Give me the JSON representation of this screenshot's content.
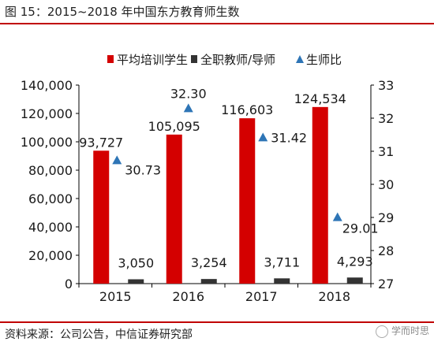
{
  "header": {
    "title": "图 15：2015~2018 年中国东方教育师生数"
  },
  "footer": {
    "source": "资料来源：公司公告，中信证券研究部",
    "watermark": "学而时思"
  },
  "colors": {
    "bar_primary": "#d40000",
    "bar_secondary": "#333333",
    "marker": "#2e75b6",
    "accent_rule": "#c00000"
  },
  "chart_data": {
    "type": "bar",
    "categories": [
      "2015",
      "2016",
      "2017",
      "2018"
    ],
    "series": [
      {
        "name": "平均培训学生",
        "kind": "bar",
        "axis": "left",
        "values": [
          93727,
          105095,
          116603,
          124534
        ],
        "labels": [
          "93,727",
          "105,095",
          "116,603",
          "124,534"
        ]
      },
      {
        "name": "全职教师/导师",
        "kind": "bar",
        "axis": "left",
        "values": [
          3050,
          3254,
          3711,
          4293
        ],
        "labels": [
          "3,050",
          "3,254",
          "3,711",
          "4,293"
        ]
      },
      {
        "name": "生师比",
        "kind": "marker",
        "axis": "right",
        "values": [
          30.73,
          32.3,
          31.42,
          29.01
        ],
        "labels": [
          "30.73",
          "32.30",
          "31.42",
          "29.01"
        ]
      }
    ],
    "y_left": {
      "min": 0,
      "max": 140000,
      "ticks": [
        "0",
        "20,000",
        "40,000",
        "60,000",
        "80,000",
        "100,000",
        "120,000",
        "140,000"
      ]
    },
    "y_right": {
      "min": 27,
      "max": 33,
      "ticks": [
        "27",
        "28",
        "29",
        "30",
        "31",
        "32",
        "33"
      ]
    },
    "grid": false,
    "legend_position": "top-center"
  }
}
